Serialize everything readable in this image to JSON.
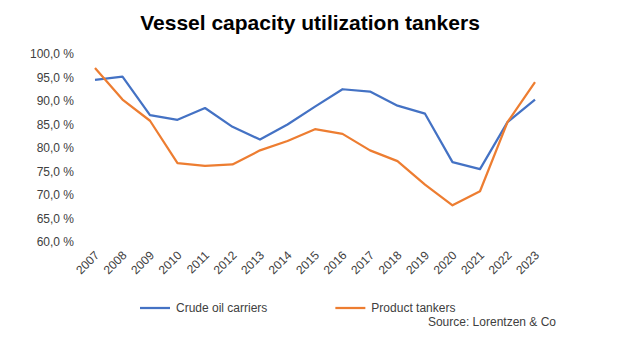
{
  "chart_data": {
    "type": "line",
    "title": "Vessel capacity utilization tankers",
    "categories": [
      "2007",
      "2008",
      "2009",
      "2010",
      "2011",
      "2012",
      "2013",
      "2014",
      "2015",
      "2016",
      "2017",
      "2018",
      "2019",
      "2020",
      "2021",
      "2022",
      "2023"
    ],
    "series": [
      {
        "name": "Crude oil carriers",
        "color": "#4472c4",
        "values": [
          94.5,
          95.2,
          87.0,
          86.0,
          88.5,
          84.5,
          81.8,
          85.0,
          88.8,
          92.5,
          92.0,
          89.0,
          87.3,
          77.0,
          75.5,
          85.5,
          90.3
        ]
      },
      {
        "name": "Product tankers",
        "color": "#ed7d31",
        "values": [
          97.0,
          90.3,
          85.8,
          76.8,
          76.2,
          76.5,
          79.5,
          81.5,
          84.0,
          83.0,
          79.5,
          77.2,
          72.2,
          67.8,
          70.8,
          85.5,
          94.0
        ]
      }
    ],
    "ylim": [
      60,
      100
    ],
    "yticks": [
      {
        "value": 60,
        "label": "60,0 %"
      },
      {
        "value": 65,
        "label": "65,0 %"
      },
      {
        "value": 70,
        "label": "70,0 %"
      },
      {
        "value": 75,
        "label": "75,0 %"
      },
      {
        "value": 80,
        "label": "80,0 %"
      },
      {
        "value": 85,
        "label": "85,0 %"
      },
      {
        "value": 90,
        "label": "90,0 %"
      },
      {
        "value": 95,
        "label": "95,0 %"
      },
      {
        "value": 100,
        "label": "100,0 %"
      }
    ],
    "grid": false,
    "legend": "bottom",
    "annotations": [
      "Source: Lorentzen & Co"
    ]
  }
}
